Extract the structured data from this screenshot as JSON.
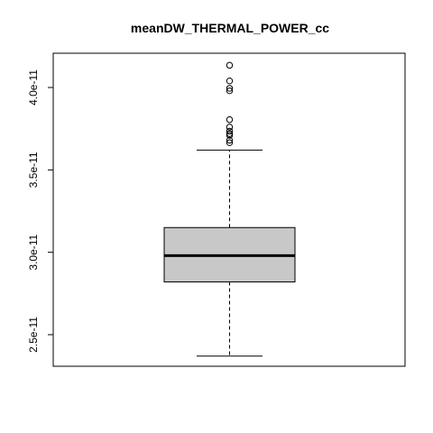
{
  "chart_data": {
    "type": "boxplot",
    "title": "meanDW_THERMAL_POWER_cc",
    "xlabel": "",
    "ylabel": "",
    "ylim": [
      2.3e-11,
      4.2e-11
    ],
    "yticks": [
      2.5e-11,
      3e-11,
      3.5e-11,
      4e-11
    ],
    "ytick_labels": [
      "2.5e-11",
      "3.0e-11",
      "3.5e-11",
      "4.0e-11"
    ],
    "box": {
      "lower_whisker": 2.37e-11,
      "q1": 2.82e-11,
      "median": 2.98e-11,
      "q3": 3.15e-11,
      "upper_whisker": 3.62e-11
    },
    "outliers": [
      3.665e-11,
      3.68e-11,
      3.71e-11,
      3.72e-11,
      3.735e-11,
      3.76e-11,
      3.805e-11,
      3.98e-11,
      3.995e-11,
      4.04e-11,
      4.135e-11
    ],
    "colors": {
      "box_fill": "#c8c8c8",
      "line": "#000000"
    },
    "grid": false,
    "legend": "none"
  }
}
